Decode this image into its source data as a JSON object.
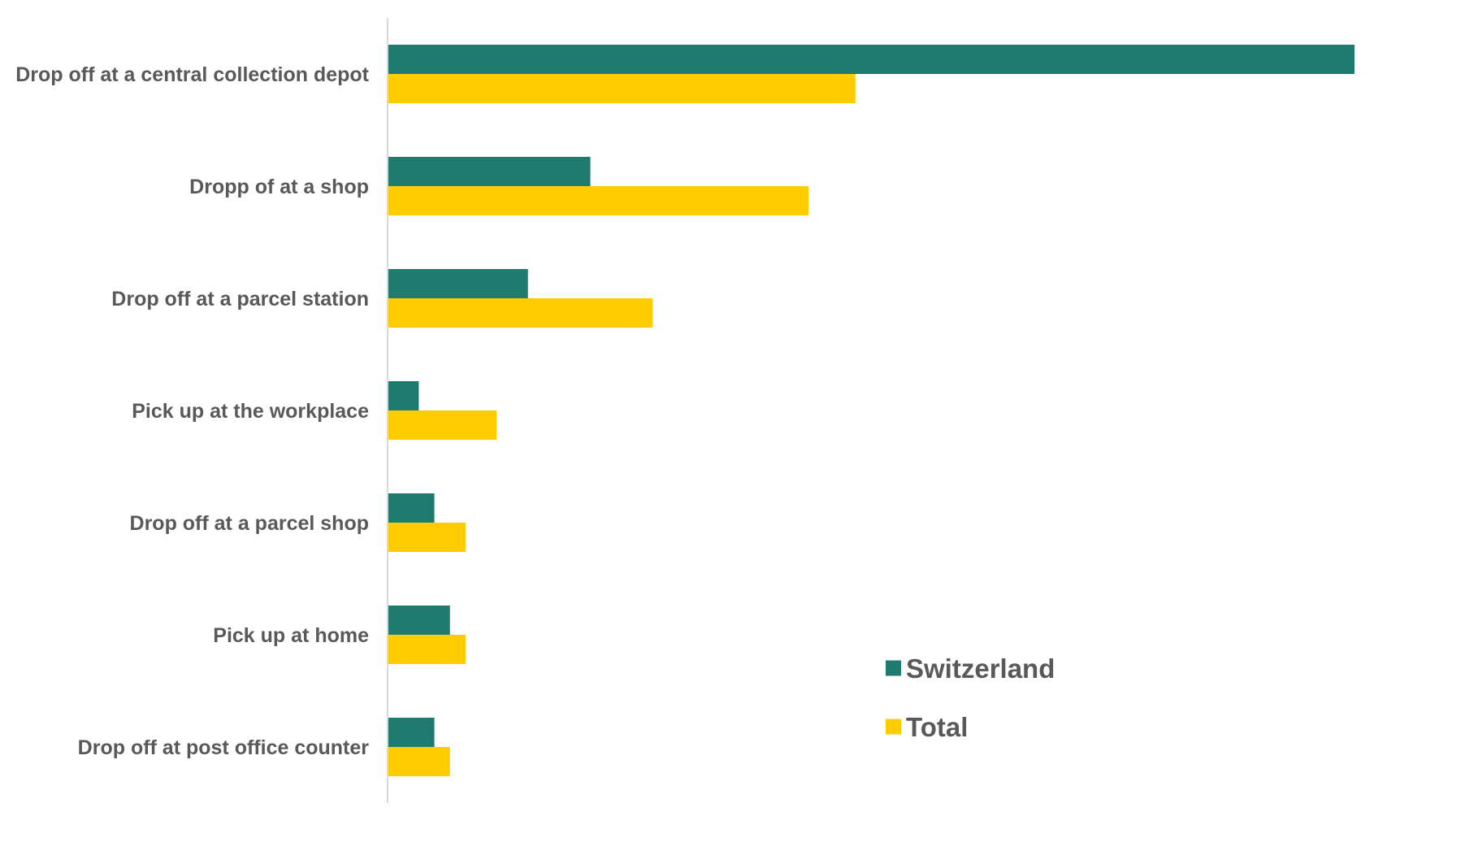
{
  "chart_data": {
    "type": "bar",
    "orientation": "horizontal",
    "categories": [
      "Drop off at a central collection depot",
      "Dropp of at a shop",
      "Drop off at a parcel station",
      "Pick up at the workplace",
      "Drop off at a parcel shop",
      "Pick up at home",
      "Drop off at post office counter"
    ],
    "series": [
      {
        "name": "Switzerland",
        "color": "#1F7B6F",
        "values": [
          62,
          13,
          9,
          2,
          3,
          4,
          3
        ]
      },
      {
        "name": "Total",
        "color": "#FFCC00",
        "values": [
          30,
          27,
          17,
          7,
          5,
          5,
          4
        ]
      }
    ],
    "xlim": [
      0,
      70
    ],
    "grid": false,
    "legend": "bottom-right"
  }
}
